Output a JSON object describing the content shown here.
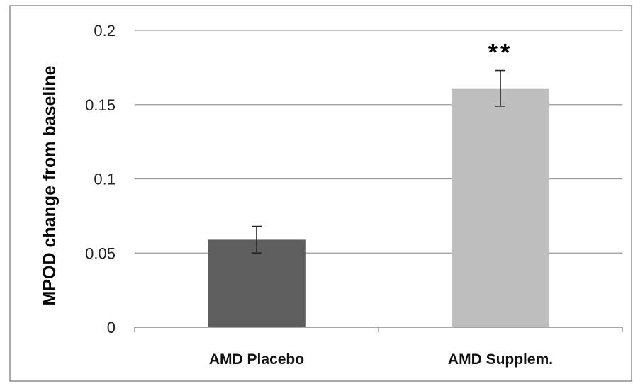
{
  "chart_data": {
    "type": "bar",
    "title": "",
    "xlabel": "",
    "ylabel": "MPOD change from baseline",
    "ylim": [
      0,
      0.2
    ],
    "yticks": [
      0,
      0.05,
      0.1,
      0.15,
      0.2
    ],
    "ytick_labels": [
      "0",
      "0.05",
      "0.1",
      "0.15",
      "0.2"
    ],
    "grid": true,
    "legend": "none",
    "categories": [
      "AMD Placebo",
      "AMD Supplem."
    ],
    "values": [
      0.059,
      0.161
    ],
    "error": [
      0.009,
      0.012
    ],
    "colors": [
      "#5f5f5f",
      "#bebebe"
    ],
    "annotations": [
      {
        "category": "AMD Supplem.",
        "text": "**"
      }
    ]
  }
}
